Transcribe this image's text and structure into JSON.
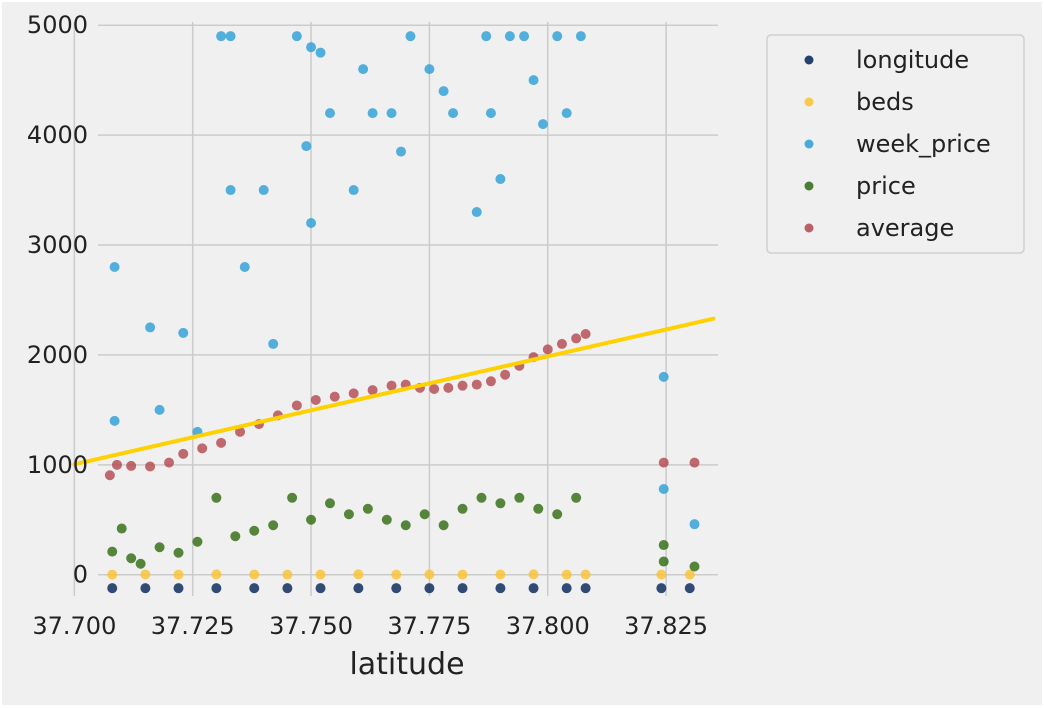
{
  "chart_data": {
    "type": "scatter",
    "title": "",
    "xlabel": "latitude",
    "ylabel": "",
    "xlim": [
      37.6995,
      37.8385
    ],
    "ylim": [
      -230,
      5120
    ],
    "x_ticks": [
      "37.700",
      "37.725",
      "37.750",
      "37.775",
      "37.800",
      "37.825"
    ],
    "y_ticks": [
      "0",
      "1000",
      "2000",
      "3000",
      "4000",
      "5000"
    ],
    "grid": true,
    "legend_position": "outside-right",
    "series": [
      {
        "name": "longitude",
        "color": "#012256",
        "kind": "points",
        "points": [
          [
            37.708,
            -122.4
          ],
          [
            37.715,
            -122.4
          ],
          [
            37.722,
            -122.4
          ],
          [
            37.73,
            -122.4
          ],
          [
            37.738,
            -122.4
          ],
          [
            37.745,
            -122.4
          ],
          [
            37.752,
            -122.4
          ],
          [
            37.76,
            -122.4
          ],
          [
            37.768,
            -122.4
          ],
          [
            37.775,
            -122.4
          ],
          [
            37.782,
            -122.4
          ],
          [
            37.79,
            -122.4
          ],
          [
            37.797,
            -122.4
          ],
          [
            37.804,
            -122.4
          ],
          [
            37.808,
            -122.4
          ],
          [
            37.824,
            -122.4
          ],
          [
            37.83,
            -122.4
          ]
        ]
      },
      {
        "name": "beds",
        "color": "#f9c22e",
        "kind": "points",
        "points": [
          [
            37.708,
            1
          ],
          [
            37.715,
            2
          ],
          [
            37.722,
            1
          ],
          [
            37.73,
            3
          ],
          [
            37.738,
            2
          ],
          [
            37.745,
            1
          ],
          [
            37.752,
            2
          ],
          [
            37.76,
            3
          ],
          [
            37.768,
            1
          ],
          [
            37.775,
            2
          ],
          [
            37.782,
            1
          ],
          [
            37.79,
            2
          ],
          [
            37.797,
            3
          ],
          [
            37.804,
            1
          ],
          [
            37.808,
            2
          ],
          [
            37.824,
            1
          ],
          [
            37.83,
            1
          ]
        ]
      },
      {
        "name": "week_price",
        "color": "#2a9fd6",
        "kind": "points",
        "points": [
          [
            37.7085,
            2800
          ],
          [
            37.7085,
            1400
          ],
          [
            37.716,
            2250
          ],
          [
            37.718,
            1500
          ],
          [
            37.723,
            2200
          ],
          [
            37.726,
            1300
          ],
          [
            37.731,
            4900
          ],
          [
            37.733,
            3500
          ],
          [
            37.733,
            4900
          ],
          [
            37.736,
            2800
          ],
          [
            37.74,
            3500
          ],
          [
            37.742,
            2100
          ],
          [
            37.747,
            4900
          ],
          [
            37.749,
            3900
          ],
          [
            37.75,
            4800
          ],
          [
            37.75,
            3200
          ],
          [
            37.752,
            4750
          ],
          [
            37.754,
            4200
          ],
          [
            37.759,
            3500
          ],
          [
            37.761,
            4600
          ],
          [
            37.763,
            4200
          ],
          [
            37.767,
            4200
          ],
          [
            37.769,
            3850
          ],
          [
            37.771,
            4900
          ],
          [
            37.775,
            4600
          ],
          [
            37.778,
            4400
          ],
          [
            37.78,
            4200
          ],
          [
            37.785,
            3300
          ],
          [
            37.787,
            4900
          ],
          [
            37.788,
            4200
          ],
          [
            37.79,
            3600
          ],
          [
            37.792,
            4900
          ],
          [
            37.795,
            4900
          ],
          [
            37.797,
            4500
          ],
          [
            37.799,
            4100
          ],
          [
            37.802,
            4900
          ],
          [
            37.804,
            4200
          ],
          [
            37.807,
            4900
          ],
          [
            37.8245,
            1800
          ],
          [
            37.8245,
            780
          ],
          [
            37.831,
            460
          ]
        ]
      },
      {
        "name": "price",
        "color": "#2e6a0e",
        "kind": "points",
        "points": [
          [
            37.708,
            210
          ],
          [
            37.71,
            420
          ],
          [
            37.712,
            150
          ],
          [
            37.714,
            100
          ],
          [
            37.718,
            250
          ],
          [
            37.722,
            200
          ],
          [
            37.726,
            300
          ],
          [
            37.73,
            700
          ],
          [
            37.734,
            350
          ],
          [
            37.738,
            400
          ],
          [
            37.742,
            450
          ],
          [
            37.746,
            700
          ],
          [
            37.75,
            500
          ],
          [
            37.754,
            650
          ],
          [
            37.758,
            550
          ],
          [
            37.762,
            600
          ],
          [
            37.766,
            500
          ],
          [
            37.77,
            450
          ],
          [
            37.774,
            550
          ],
          [
            37.778,
            450
          ],
          [
            37.782,
            600
          ],
          [
            37.786,
            700
          ],
          [
            37.79,
            650
          ],
          [
            37.794,
            700
          ],
          [
            37.798,
            600
          ],
          [
            37.802,
            550
          ],
          [
            37.806,
            700
          ],
          [
            37.8245,
            270
          ],
          [
            37.8245,
            120
          ],
          [
            37.831,
            75
          ]
        ]
      },
      {
        "name": "average",
        "color": "#b3474f",
        "kind": "points",
        "points": [
          [
            37.7075,
            905
          ],
          [
            37.709,
            1000
          ],
          [
            37.712,
            990
          ],
          [
            37.716,
            985
          ],
          [
            37.72,
            1020
          ],
          [
            37.723,
            1100
          ],
          [
            37.727,
            1150
          ],
          [
            37.731,
            1200
          ],
          [
            37.735,
            1300
          ],
          [
            37.739,
            1370
          ],
          [
            37.743,
            1450
          ],
          [
            37.747,
            1540
          ],
          [
            37.751,
            1590
          ],
          [
            37.755,
            1620
          ],
          [
            37.759,
            1650
          ],
          [
            37.763,
            1680
          ],
          [
            37.767,
            1720
          ],
          [
            37.77,
            1730
          ],
          [
            37.773,
            1700
          ],
          [
            37.776,
            1690
          ],
          [
            37.779,
            1700
          ],
          [
            37.782,
            1720
          ],
          [
            37.785,
            1730
          ],
          [
            37.788,
            1760
          ],
          [
            37.791,
            1820
          ],
          [
            37.794,
            1900
          ],
          [
            37.797,
            1980
          ],
          [
            37.8,
            2050
          ],
          [
            37.803,
            2100
          ],
          [
            37.806,
            2150
          ],
          [
            37.808,
            2190
          ],
          [
            37.8245,
            1020
          ],
          [
            37.831,
            1020
          ]
        ]
      },
      {
        "name": "",
        "color": "#ffd100",
        "kind": "line",
        "points": [
          [
            37.7,
            1005
          ],
          [
            37.835,
            2330
          ]
        ]
      }
    ],
    "legend": [
      "longitude",
      "beds",
      "week_price",
      "price",
      "average"
    ]
  }
}
